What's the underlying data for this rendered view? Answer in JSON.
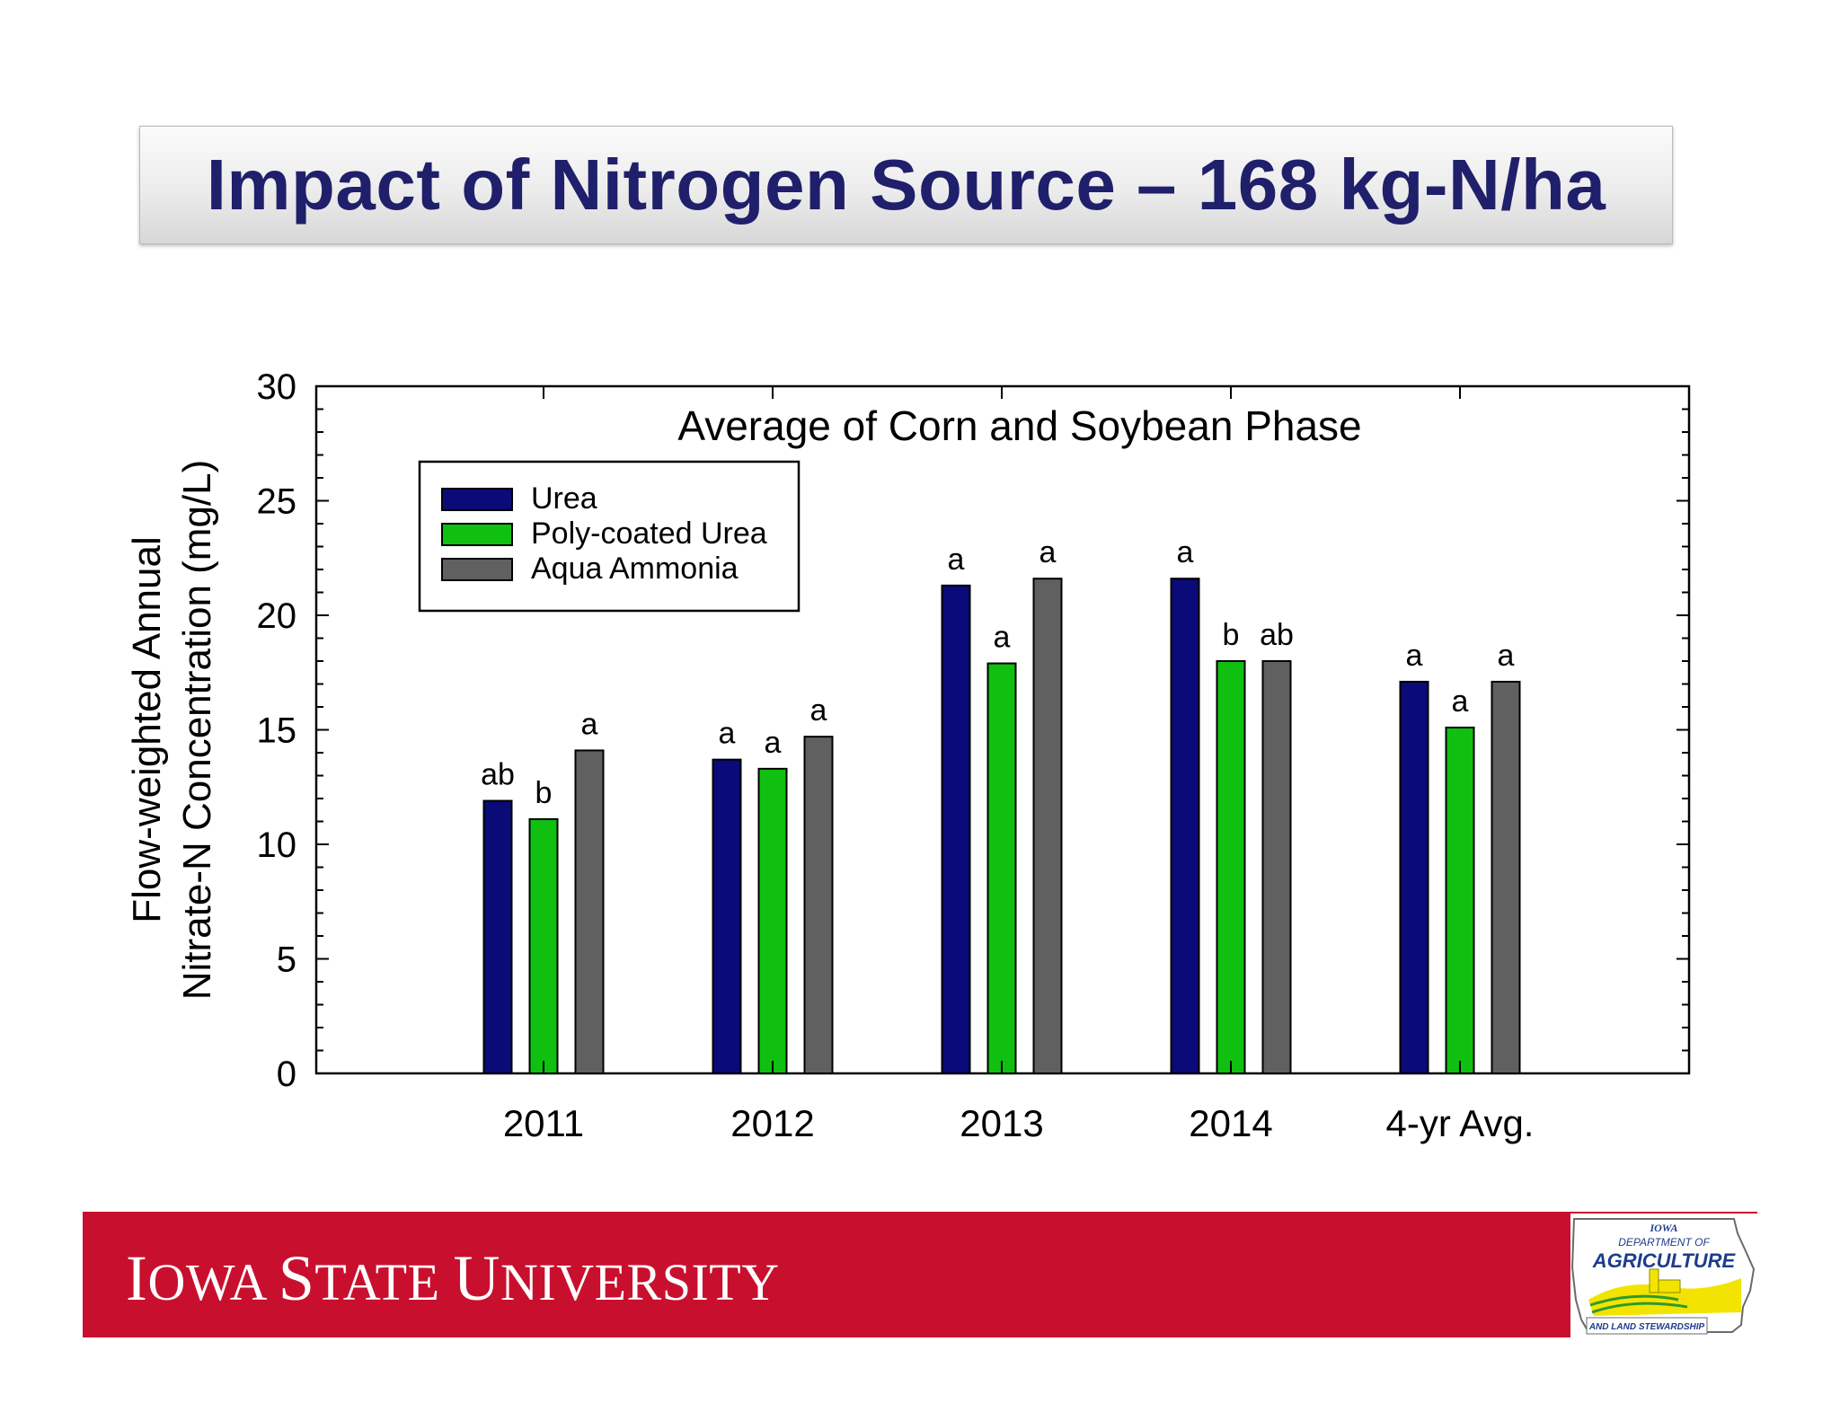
{
  "slide": {
    "title": "Impact of Nitrogen Source – 168 kg-N/ha"
  },
  "footer": {
    "university_parts": [
      {
        "cap": "I",
        "rest": "OWA "
      },
      {
        "cap": "S",
        "rest": "TATE "
      },
      {
        "cap": "U",
        "rest": "NIVERSITY"
      }
    ],
    "logo": {
      "line1": "IOWA",
      "line2": "DEPARTMENT OF",
      "line3": "AGRICULTURE",
      "line4": "AND LAND STEWARDSHIP"
    }
  },
  "colors": {
    "title": "#1f1f6b",
    "footer_red": "#c8102e"
  },
  "chart_data": {
    "type": "bar",
    "title": "Average of Corn and Soybean Phase",
    "ylabel_lines": [
      "Flow-weighted Annual",
      "Nitrate-N Concentration (mg/L)"
    ],
    "xlabel": "",
    "categories": [
      "2011",
      "2012",
      "2013",
      "2014",
      "4-yr Avg."
    ],
    "ylim": [
      0,
      30
    ],
    "yticks": [
      0,
      5,
      10,
      15,
      20,
      25,
      30
    ],
    "grid": false,
    "legend_position": "top-left",
    "series": [
      {
        "name": "Urea",
        "color": "#0a0a78",
        "values": [
          11.9,
          13.7,
          21.3,
          21.6,
          17.1
        ],
        "labels": [
          "ab",
          "a",
          "a",
          "a",
          "a"
        ]
      },
      {
        "name": "Poly-coated Urea",
        "color": "#10c010",
        "values": [
          11.1,
          13.3,
          17.9,
          18.0,
          15.1
        ],
        "labels": [
          "b",
          "a",
          "a",
          "b",
          "a"
        ]
      },
      {
        "name": "Aqua Ammonia",
        "color": "#606060",
        "values": [
          14.1,
          14.7,
          21.6,
          18.0,
          17.1
        ],
        "labels": [
          "a",
          "a",
          "a",
          "ab",
          "a"
        ]
      }
    ]
  }
}
